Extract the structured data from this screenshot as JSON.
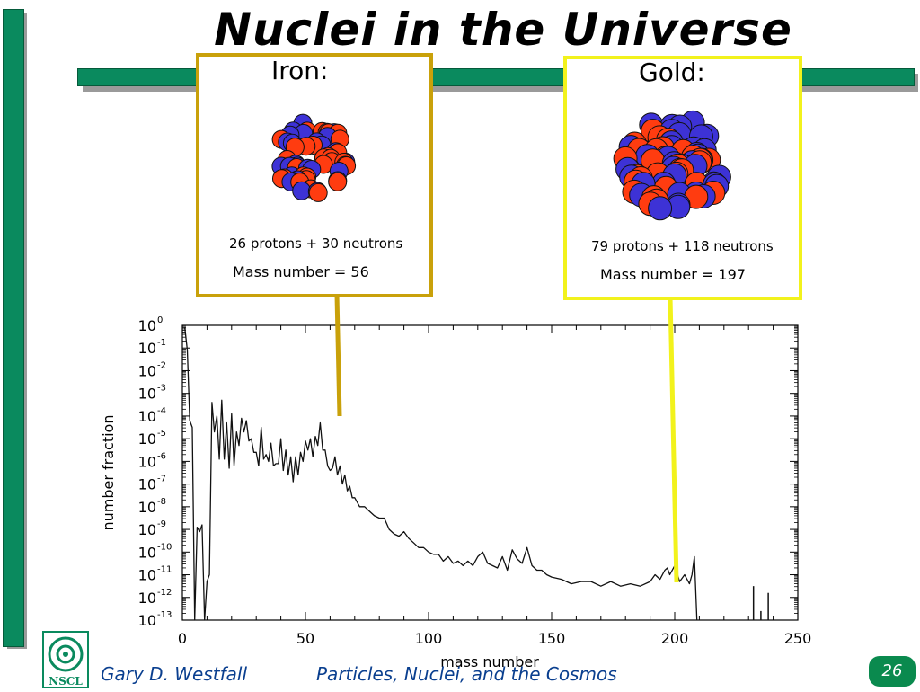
{
  "slide": {
    "title": "Nuclei in the Universe",
    "author": "Gary D. Westfall",
    "course": "Particles, Nuclei, and the Cosmos",
    "page_number": "26",
    "logo_text": "NSCL"
  },
  "iron": {
    "label": "Iron:",
    "composition": "26 protons + 30 neutrons",
    "mass_number": "Mass number = 56",
    "border_color": "#c9a10a"
  },
  "gold": {
    "label": "Gold:",
    "composition": "79 protons + 118 neutrons",
    "mass_number": "Mass number = 197",
    "border_color": "#f2f21c"
  },
  "colors": {
    "accent_bar": "#0a8a5e",
    "proton": "#ff3c10",
    "neutron": "#3d32d6",
    "footer_text": "#0a3f8f"
  },
  "chart_data": {
    "type": "line",
    "xlabel": "mass number",
    "ylabel": "number fraction",
    "xlim": [
      0,
      250
    ],
    "ylog_exponents": [
      0,
      -13
    ],
    "x_ticks": [
      "0",
      "50",
      "100",
      "150",
      "200",
      "250"
    ],
    "y_ticks": [
      {
        "base": "10",
        "exp": "0"
      },
      {
        "base": "10",
        "exp": "-1"
      },
      {
        "base": "10",
        "exp": "-2"
      },
      {
        "base": "10",
        "exp": "-3"
      },
      {
        "base": "10",
        "exp": "-4"
      },
      {
        "base": "10",
        "exp": "-5"
      },
      {
        "base": "10",
        "exp": "-6"
      },
      {
        "base": "10",
        "exp": "-7"
      },
      {
        "base": "10",
        "exp": "-8"
      },
      {
        "base": "10",
        "exp": "-9"
      },
      {
        "base": "10",
        "exp": "-10"
      },
      {
        "base": "10",
        "exp": "-11"
      },
      {
        "base": "10",
        "exp": "-12"
      },
      {
        "base": "10",
        "exp": "-13"
      }
    ],
    "series": [
      {
        "x": [
          1,
          2,
          3,
          4,
          5,
          6,
          7,
          8,
          9,
          10,
          11,
          12,
          13,
          14,
          15,
          16,
          17,
          18,
          19,
          20,
          21,
          22,
          23,
          24,
          25,
          26,
          27,
          28,
          29,
          30,
          31,
          32,
          33,
          34,
          35,
          36,
          37,
          38,
          39,
          40,
          41,
          42,
          43,
          44,
          45,
          46,
          47,
          48,
          49,
          50,
          51,
          52,
          53,
          54,
          55,
          56,
          57,
          58,
          59,
          60,
          61,
          62,
          63,
          64,
          65,
          66,
          67,
          68,
          69,
          70,
          72,
          74,
          76,
          78,
          80,
          82,
          84,
          86,
          88,
          90,
          92,
          94,
          96,
          98,
          100,
          102,
          104,
          106,
          108,
          110,
          112,
          114,
          116,
          118,
          120,
          122,
          124,
          126,
          128,
          130,
          132,
          134,
          136,
          138,
          140,
          142,
          144,
          146,
          148,
          150,
          154,
          158,
          162,
          166,
          170,
          174,
          178,
          182,
          186,
          190,
          192,
          194,
          196,
          197,
          198,
          200,
          202,
          204,
          206,
          207,
          208,
          209
        ],
        "y": [
          -0.1,
          -1.1,
          -4.2,
          -4.5,
          -13.0,
          -8.9,
          -9.1,
          -8.8,
          -13.0,
          -11.3,
          -11.0,
          -3.4,
          -4.7,
          -4.0,
          -5.9,
          -3.3,
          -5.9,
          -4.3,
          -6.3,
          -3.9,
          -6.2,
          -4.7,
          -5.3,
          -4.1,
          -4.7,
          -4.2,
          -5.1,
          -5.0,
          -5.6,
          -5.6,
          -6.2,
          -4.5,
          -5.9,
          -5.7,
          -6.0,
          -5.2,
          -6.2,
          -6.1,
          -6.1,
          -5.0,
          -6.4,
          -5.5,
          -6.6,
          -5.8,
          -6.9,
          -5.8,
          -6.6,
          -5.6,
          -6.0,
          -5.1,
          -5.5,
          -5.0,
          -5.8,
          -4.9,
          -5.3,
          -4.3,
          -5.5,
          -5.5,
          -6.2,
          -6.4,
          -6.3,
          -5.8,
          -6.6,
          -6.2,
          -7.0,
          -6.6,
          -7.3,
          -7.1,
          -7.6,
          -7.6,
          -8.0,
          -8.0,
          -8.2,
          -8.4,
          -8.5,
          -8.5,
          -9.0,
          -9.2,
          -9.3,
          -9.1,
          -9.4,
          -9.6,
          -9.8,
          -9.8,
          -10.0,
          -10.1,
          -10.1,
          -10.4,
          -10.2,
          -10.5,
          -10.4,
          -10.6,
          -10.4,
          -10.6,
          -10.2,
          -10.0,
          -10.5,
          -10.6,
          -10.7,
          -10.2,
          -10.8,
          -9.9,
          -10.3,
          -10.5,
          -9.8,
          -10.6,
          -10.8,
          -10.8,
          -11.0,
          -11.1,
          -11.2,
          -11.4,
          -11.3,
          -11.3,
          -11.5,
          -11.3,
          -11.5,
          -11.4,
          -11.5,
          -11.3,
          -11.0,
          -11.2,
          -10.8,
          -10.7,
          -11.0,
          -10.6,
          -11.3,
          -11.0,
          -11.4,
          -11.0,
          -10.2,
          -13.0
        ]
      }
    ],
    "grid": false,
    "legend": "none"
  }
}
